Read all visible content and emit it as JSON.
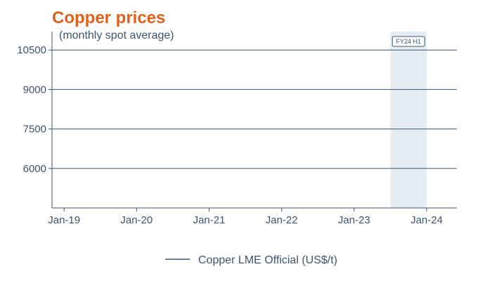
{
  "chart_data": {
    "type": "line",
    "title": "Copper prices",
    "subtitle": "(monthly spot average)",
    "xlabel": "",
    "ylabel": "",
    "x_ticks": [
      "Jan-19",
      "Jan-20",
      "Jan-21",
      "Jan-22",
      "Jan-23",
      "Jan-24"
    ],
    "y_ticks": [
      6000,
      7500,
      9000,
      10500
    ],
    "xlim": [
      "2018-11",
      "2024-06"
    ],
    "ylim": [
      4500,
      11200
    ],
    "grid": "horizontal",
    "series": [
      {
        "name": "Copper LME Official (US$/t)",
        "color": "#3d566e",
        "values": []
      }
    ],
    "shaded_region": {
      "label": "FY24 H1",
      "start": "2023-07",
      "end": "2024-01",
      "color": "#dce6ec"
    },
    "legend": "bottom-center"
  },
  "colors": {
    "title": "#e0611a",
    "axis": "#3d566e",
    "shade": "#dce6ec"
  }
}
